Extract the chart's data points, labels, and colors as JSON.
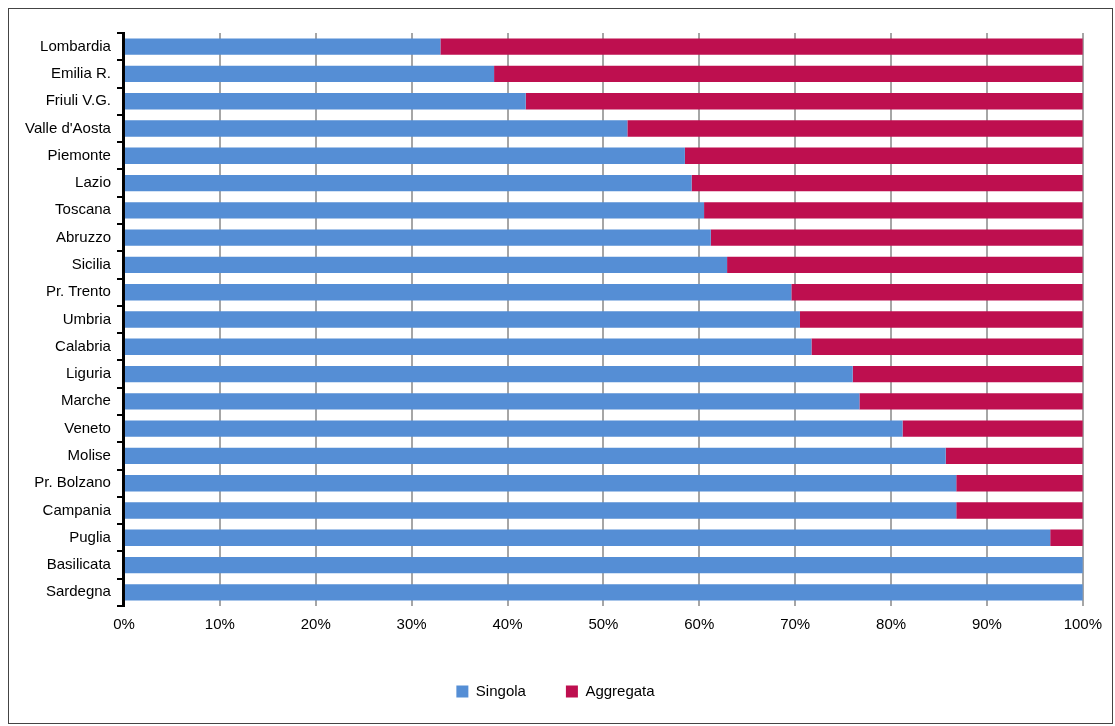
{
  "chart_data": {
    "type": "bar",
    "orientation": "horizontal",
    "stacked": true,
    "categories": [
      "Lombardia",
      "Emilia R.",
      "Friuli V.G.",
      "Valle d'Aosta",
      "Piemonte",
      "Lazio",
      "Toscana",
      "Abruzzo",
      "Sicilia",
      "Pr. Trento",
      "Umbria",
      "Calabria",
      "Liguria",
      "Marche",
      "Veneto",
      "Molise",
      "Pr. Bolzano",
      "Campania",
      "Puglia",
      "Basilicata",
      "Sardegna"
    ],
    "series": [
      {
        "name": "Singola",
        "color": "#558ed5",
        "values": [
          33.0,
          38.6,
          41.9,
          52.5,
          58.5,
          59.2,
          60.5,
          61.2,
          62.9,
          69.6,
          70.5,
          71.7,
          76.0,
          76.7,
          81.2,
          85.7,
          86.8,
          86.8,
          96.6,
          100,
          100
        ]
      },
      {
        "name": "Aggregata",
        "color": "#be0f4f",
        "values": [
          67.0,
          61.4,
          58.1,
          47.5,
          41.5,
          40.8,
          39.5,
          38.8,
          37.1,
          30.4,
          29.5,
          28.3,
          24.0,
          23.3,
          18.8,
          14.3,
          13.2,
          13.2,
          3.4,
          0,
          0
        ]
      }
    ],
    "xlim": [
      0,
      100
    ],
    "xticks": [
      {
        "value": 0,
        "label": "0%"
      },
      {
        "value": 10,
        "label": "10%"
      },
      {
        "value": 20,
        "label": "20%"
      },
      {
        "value": 30,
        "label": "30%"
      },
      {
        "value": 40,
        "label": "40%"
      },
      {
        "value": 50,
        "label": "50%"
      },
      {
        "value": 60,
        "label": "60%"
      },
      {
        "value": 70,
        "label": "70%"
      },
      {
        "value": 80,
        "label": "80%"
      },
      {
        "value": 90,
        "label": "90%"
      },
      {
        "value": 100,
        "label": "100%"
      }
    ],
    "grid": "x",
    "legend": "bottom"
  }
}
